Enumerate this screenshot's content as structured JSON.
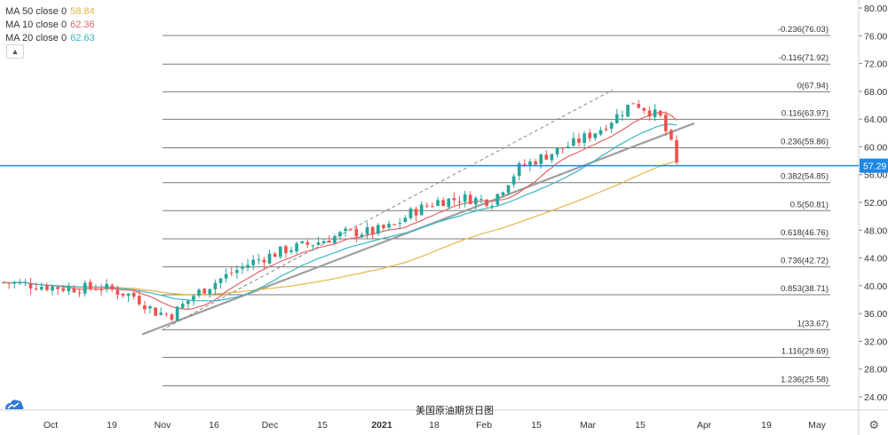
{
  "chart_data": {
    "type": "candlestick",
    "title": "美国原油期货日图",
    "y_axis": {
      "ticks": [
        "80.00",
        "76.00",
        "72.00",
        "68.00",
        "64.00",
        "60.00",
        "56.00",
        "52.00",
        "48.00",
        "44.00",
        "40.00",
        "36.00",
        "32.00",
        "28.00",
        "24.00"
      ],
      "range": [
        23,
        81
      ]
    },
    "x_axis": {
      "labels": [
        {
          "text": "Oct",
          "bold": false
        },
        {
          "text": "19",
          "bold": false
        },
        {
          "text": "Nov",
          "bold": false
        },
        {
          "text": "16",
          "bold": false
        },
        {
          "text": "Dec",
          "bold": false
        },
        {
          "text": "15",
          "bold": false
        },
        {
          "text": "2021",
          "bold": true
        },
        {
          "text": "18",
          "bold": false
        },
        {
          "text": "Feb",
          "bold": false
        },
        {
          "text": "15",
          "bold": false
        },
        {
          "text": "Mar",
          "bold": false
        },
        {
          "text": "15",
          "bold": false
        },
        {
          "text": "Apr",
          "bold": false
        },
        {
          "text": "19",
          "bold": false
        },
        {
          "text": "May",
          "bold": false
        }
      ]
    },
    "moving_averages": [
      {
        "label": "MA 50 close 0",
        "value": "58.84",
        "color": "#e8b54a"
      },
      {
        "label": "MA 10 close 0",
        "value": "62.36",
        "color": "#e06666"
      },
      {
        "label": "MA 20 close 0",
        "value": "62.63",
        "color": "#38b6c4"
      }
    ],
    "fib_levels": [
      {
        "label": "-0.236(76.03)",
        "value": 76.03
      },
      {
        "label": "-0.116(71.92)",
        "value": 71.92
      },
      {
        "label": "0(67.94)",
        "value": 67.94
      },
      {
        "label": "0.116(63.97)",
        "value": 63.97
      },
      {
        "label": "0.236(59.86)",
        "value": 59.86
      },
      {
        "label": "0.382(54.85)",
        "value": 54.85
      },
      {
        "label": "0.5(50.81)",
        "value": 50.81
      },
      {
        "label": "0.618(46.76)",
        "value": 46.76
      },
      {
        "label": "0.736(42.72)",
        "value": 42.72
      },
      {
        "label": "0.853(38.71)",
        "value": 38.71
      },
      {
        "label": "1(33.67)",
        "value": 33.67
      },
      {
        "label": "1.116(29.69)",
        "value": 29.69
      },
      {
        "label": "1.236(25.58)",
        "value": 25.58
      }
    ],
    "current_price": {
      "label": "57.29",
      "value": 57.29,
      "color": "#1e88e5"
    },
    "colors": {
      "up": "#26a69a",
      "down": "#ef5350",
      "fib": "#787878",
      "trend": "#9e9e9e"
    }
  }
}
